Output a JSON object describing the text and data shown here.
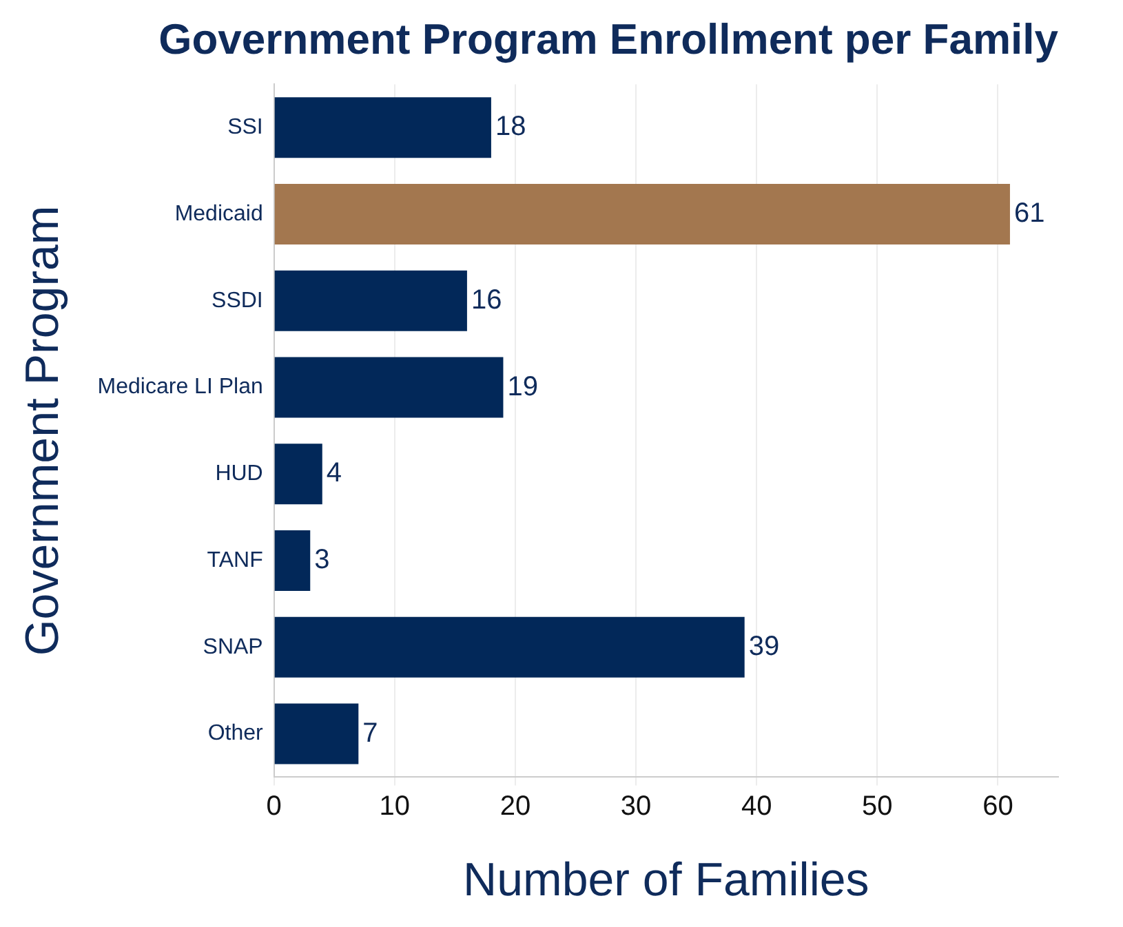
{
  "chart_data": {
    "type": "bar",
    "orientation": "horizontal",
    "title": "Government Program Enrollment per Family",
    "xlabel": "Number of Families",
    "ylabel": "Government Program",
    "categories": [
      "SSI",
      "Medicaid",
      "SSDI",
      "Medicare LI Plan",
      "HUD",
      "TANF",
      "SNAP",
      "Other"
    ],
    "values": [
      18,
      61,
      16,
      19,
      4,
      3,
      39,
      7
    ],
    "colors": [
      "#022859",
      "#a3774f",
      "#022859",
      "#022859",
      "#022859",
      "#022859",
      "#022859",
      "#022859"
    ],
    "xlim": [
      0,
      65
    ],
    "xticks": [
      0,
      10,
      20,
      30,
      40,
      50,
      60
    ],
    "grid": "x",
    "data_labels": true,
    "legend": false
  }
}
